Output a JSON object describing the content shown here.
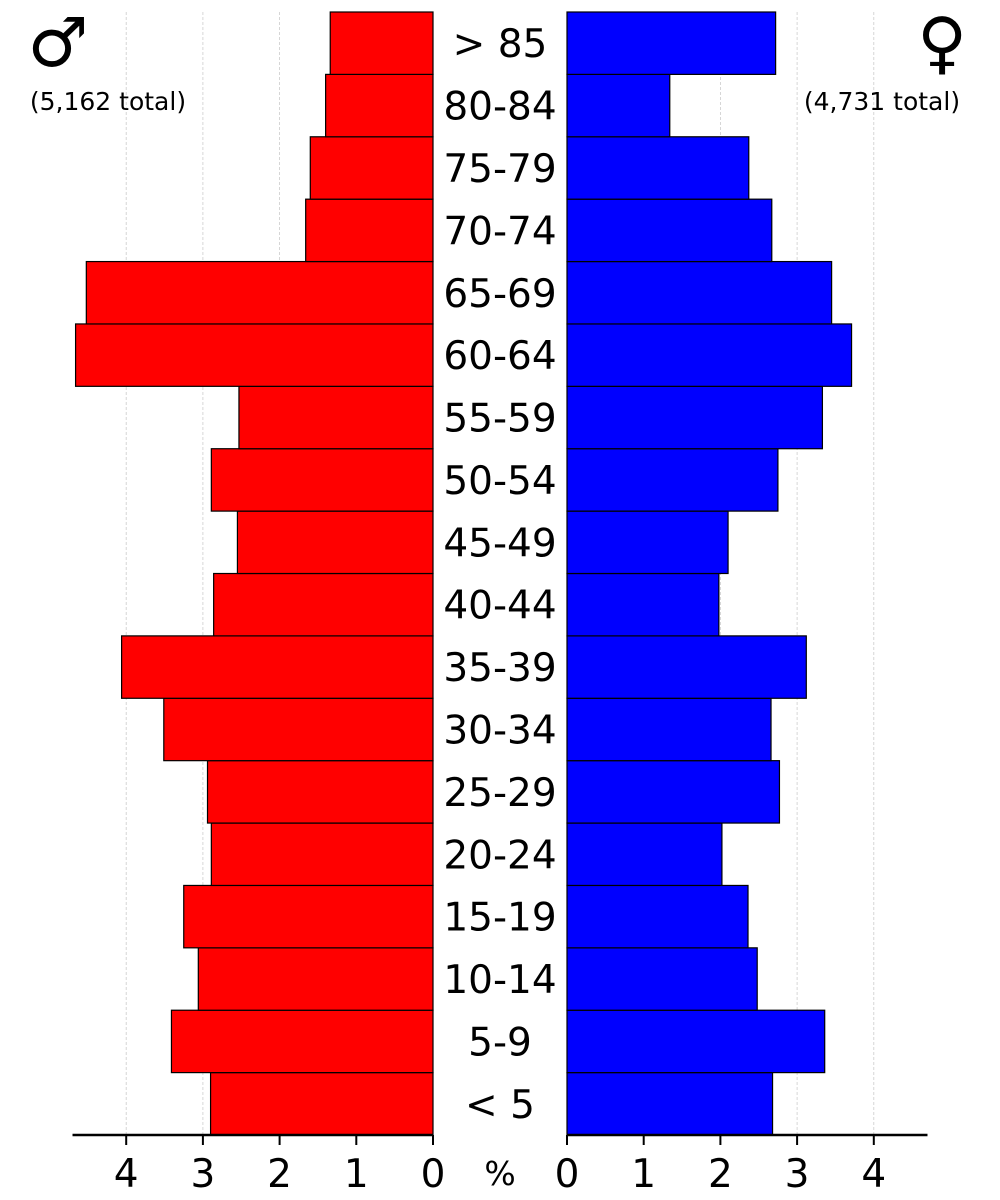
{
  "chart_data": {
    "type": "bar",
    "subtype": "population-pyramid",
    "unit_label": "%",
    "categories": [
      "< 5",
      "5-9",
      "10-14",
      "15-19",
      "20-24",
      "25-29",
      "30-34",
      "35-39",
      "40-44",
      "45-49",
      "50-54",
      "55-59",
      "60-64",
      "65-69",
      "70-74",
      "75-79",
      "80-84",
      "> 85"
    ],
    "series": [
      {
        "name": "male",
        "symbol": "♂",
        "total_label": "(5,162 total)",
        "color": "#ff0000",
        "side": "left",
        "values": [
          2.9,
          3.41,
          3.06,
          3.25,
          2.89,
          2.94,
          3.51,
          4.06,
          2.86,
          2.55,
          2.89,
          2.53,
          4.66,
          4.52,
          1.66,
          1.6,
          1.4,
          1.34
        ]
      },
      {
        "name": "female",
        "symbol": "♀",
        "total_label": "(4,731 total)",
        "color": "#0000ff",
        "side": "right",
        "values": [
          2.68,
          3.36,
          2.48,
          2.36,
          2.02,
          2.77,
          2.66,
          3.12,
          1.98,
          2.1,
          2.75,
          3.33,
          3.71,
          3.45,
          2.67,
          2.37,
          1.34,
          2.72
        ]
      }
    ],
    "x_ticks": [
      0,
      1,
      2,
      3,
      4
    ],
    "xlim": [
      0,
      4.7
    ],
    "grid": true,
    "legend": "top corners"
  }
}
